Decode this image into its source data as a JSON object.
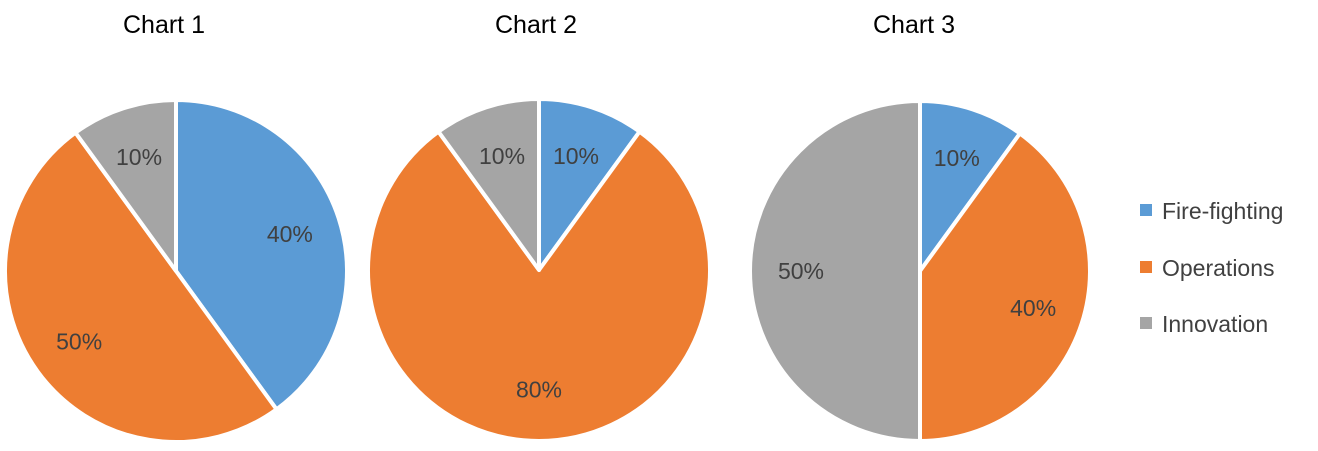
{
  "chart_data": [
    {
      "type": "pie",
      "title": "Chart 1",
      "categories": [
        "Fire-fighting",
        "Operations",
        "Innovation"
      ],
      "values": [
        40,
        50,
        10
      ],
      "labels": [
        "40%",
        "50%",
        "10%"
      ]
    },
    {
      "type": "pie",
      "title": "Chart 2",
      "categories": [
        "Fire-fighting",
        "Operations",
        "Innovation"
      ],
      "values": [
        10,
        80,
        10
      ],
      "labels": [
        "10%",
        "80%",
        "10%"
      ]
    },
    {
      "type": "pie",
      "title": "Chart 3",
      "categories": [
        "Fire-fighting",
        "Operations",
        "Innovation"
      ],
      "values": [
        10,
        40,
        50
      ],
      "labels": [
        "10%",
        "40%",
        "50%"
      ]
    }
  ],
  "legend": {
    "placement": "right",
    "items": [
      {
        "label": "Fire-fighting",
        "color": "#5B9BD5"
      },
      {
        "label": "Operations",
        "color": "#ED7D31"
      },
      {
        "label": "Innovation",
        "color": "#A5A5A5"
      }
    ]
  }
}
